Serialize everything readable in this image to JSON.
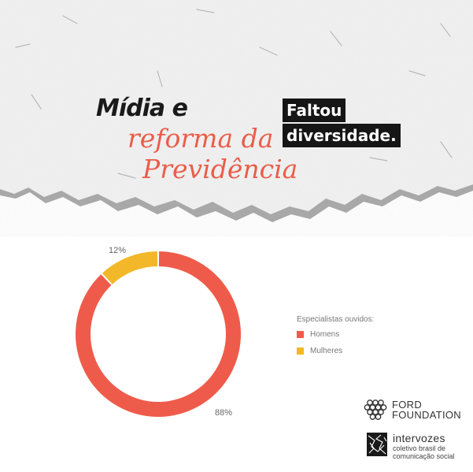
{
  "header": {
    "title_bold": "Mídia e",
    "title_line2": "reforma da",
    "title_line3": "Previdência",
    "tag_line1": "Faltou",
    "tag_line2": "diversidade."
  },
  "chart_data": {
    "type": "pie",
    "donut": true,
    "legend_title": "Especialistas ouvidos:",
    "legend_placement": "right",
    "slices": [
      {
        "name": "Homens",
        "value": 88,
        "label": "88%",
        "color": "#ef5b4a"
      },
      {
        "name": "Mulheres",
        "value": 12,
        "label": "12%",
        "color": "#f3b829"
      }
    ]
  },
  "logos": {
    "ford_line1": "FORD",
    "ford_line2": "FOUNDATION",
    "intervozes_name": "intervozes",
    "intervozes_sub1": "coletivo brasil de",
    "intervozes_sub2": "comunicação social"
  },
  "colors": {
    "accent": "#ea5d49",
    "tag_bg": "#161616"
  }
}
